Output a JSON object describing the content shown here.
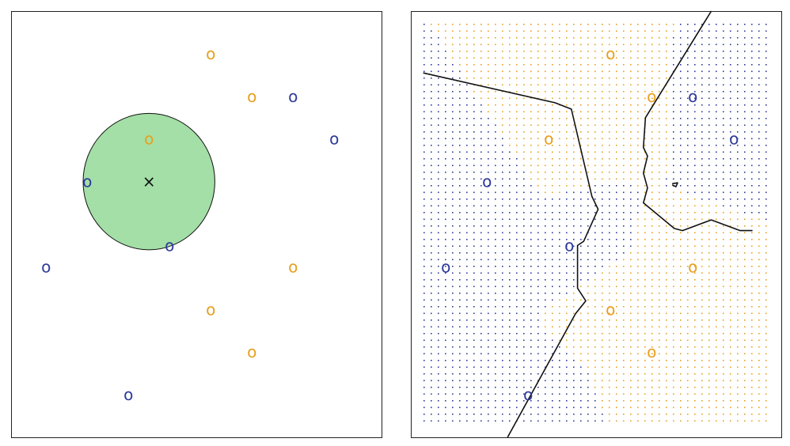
{
  "chart_data": [
    {
      "type": "scatter",
      "title": "",
      "xlabel": "",
      "ylabel": "",
      "xlim": [
        0,
        9
      ],
      "ylim": [
        0,
        10
      ],
      "grid": false,
      "point_marker": "o",
      "colors": {
        "class_orange": "#E8A020",
        "class_blue": "#2E3A9A",
        "neighborhood": "#A3DFA6",
        "test_point": "#111111"
      },
      "series": [
        {
          "class": "orange",
          "points": [
            [
              4.85,
              9.0
            ],
            [
              5.85,
              8.0
            ],
            [
              3.35,
              7.0
            ],
            [
              6.85,
              4.0
            ],
            [
              4.85,
              3.0
            ],
            [
              5.85,
              2.0
            ]
          ]
        },
        {
          "class": "blue",
          "points": [
            [
              6.85,
              8.0
            ],
            [
              7.85,
              7.0
            ],
            [
              1.85,
              6.0
            ],
            [
              3.85,
              4.5
            ],
            [
              0.85,
              4.0
            ],
            [
              2.85,
              1.0
            ]
          ]
        }
      ],
      "test_point": {
        "marker": "×",
        "x": 3.35,
        "y": 6.0
      },
      "neighborhood_circle": {
        "center": [
          3.35,
          6.0
        ],
        "radius": 1.6
      }
    },
    {
      "type": "scatter",
      "title": "",
      "xlabel": "",
      "ylabel": "",
      "xlim": [
        0,
        9
      ],
      "ylim": [
        0,
        10
      ],
      "grid": false,
      "point_marker": "o",
      "background": "dot grid colored by predicted class",
      "colors": {
        "class_orange": "#E8A020",
        "class_blue": "#2E3A9A",
        "boundary": "#111111"
      },
      "series": [
        {
          "class": "orange",
          "points": [
            [
              4.85,
              9.0
            ],
            [
              5.85,
              8.0
            ],
            [
              3.35,
              7.0
            ],
            [
              6.85,
              4.0
            ],
            [
              4.85,
              3.0
            ],
            [
              5.85,
              2.0
            ]
          ]
        },
        {
          "class": "blue",
          "points": [
            [
              6.85,
              8.0
            ],
            [
              7.85,
              7.0
            ],
            [
              1.85,
              6.0
            ],
            [
              3.85,
              4.5
            ],
            [
              0.85,
              4.0
            ],
            [
              2.85,
              1.0
            ]
          ]
        }
      ],
      "decision_boundary": [
        {
          "points": [
            [
              0.3,
              8.55
            ],
            [
              3.5,
              7.85
            ],
            [
              3.9,
              7.7
            ],
            [
              4.4,
              5.65
            ],
            [
              4.55,
              5.35
            ],
            [
              4.2,
              4.6
            ],
            [
              4.05,
              4.5
            ],
            [
              4.05,
              3.5
            ],
            [
              4.25,
              3.2
            ],
            [
              4.0,
              2.9
            ],
            [
              2.35,
              0.0
            ]
          ]
        },
        {
          "points": [
            [
              7.3,
              10.0
            ],
            [
              5.7,
              7.5
            ],
            [
              5.65,
              6.8
            ],
            [
              5.75,
              6.6
            ],
            [
              5.65,
              6.2
            ],
            [
              5.75,
              5.85
            ],
            [
              5.65,
              5.5
            ],
            [
              6.4,
              4.9
            ],
            [
              6.6,
              4.85
            ],
            [
              7.3,
              5.1
            ],
            [
              8.0,
              4.85
            ],
            [
              8.3,
              4.85
            ]
          ]
        },
        {
          "points": [
            [
              6.35,
              5.95
            ],
            [
              6.48,
              5.97
            ],
            [
              6.44,
              5.88
            ],
            [
              6.35,
              5.92
            ]
          ]
        }
      ]
    }
  ]
}
